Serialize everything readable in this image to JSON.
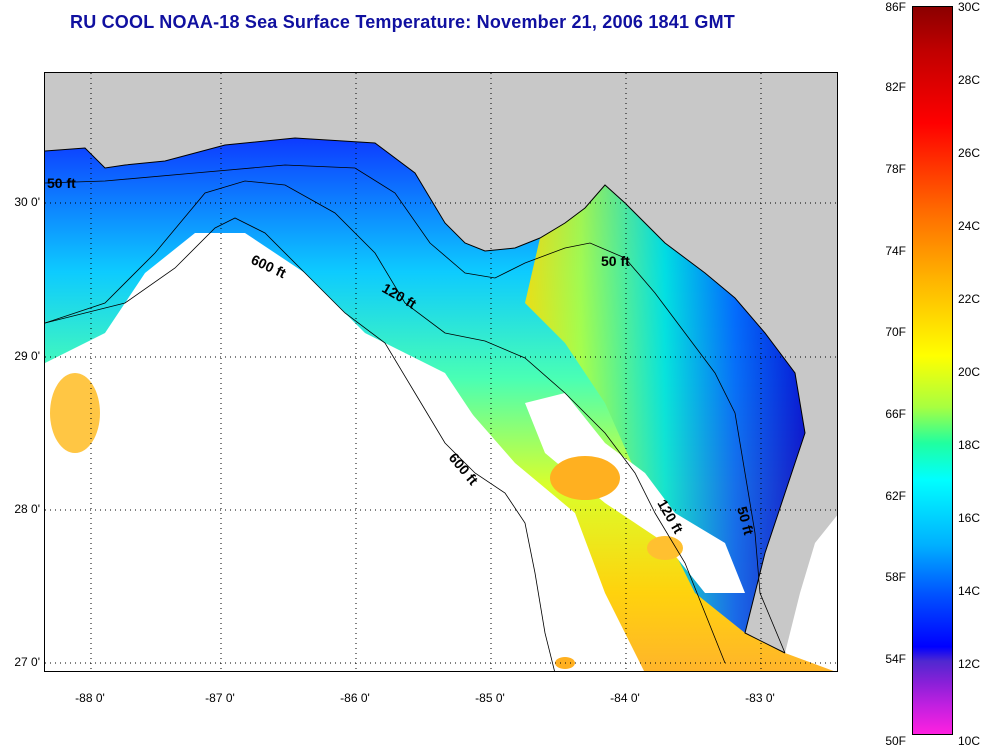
{
  "title": "RU COOL  NOAA-18  Sea Surface Temperature:  November 21, 2006 1841 GMT",
  "map": {
    "latitude_labels": [
      "30 0'",
      "29 0'",
      "28 0'",
      "27 0'"
    ],
    "longitude_labels": [
      "-88 0'",
      "-87 0'",
      "-86 0'",
      "-85 0'",
      "-84 0'",
      "-83 0'"
    ],
    "contours": [
      "50 ft",
      "600 ft",
      "120 ft",
      "50 ft",
      "600 ft",
      "120 ft",
      "50 ft"
    ],
    "colors": {
      "land": "#c8c8c8",
      "cloud": "#ffffff",
      "grid": "#000000"
    }
  },
  "colorbar": {
    "fahrenheit": [
      "86F",
      "82F",
      "78F",
      "74F",
      "70F",
      "66F",
      "62F",
      "58F",
      "54F",
      "50F"
    ],
    "celsius": [
      "30C",
      "28C",
      "26C",
      "24C",
      "22C",
      "20C",
      "18C",
      "16C",
      "14C",
      "12C",
      "10C"
    ]
  }
}
